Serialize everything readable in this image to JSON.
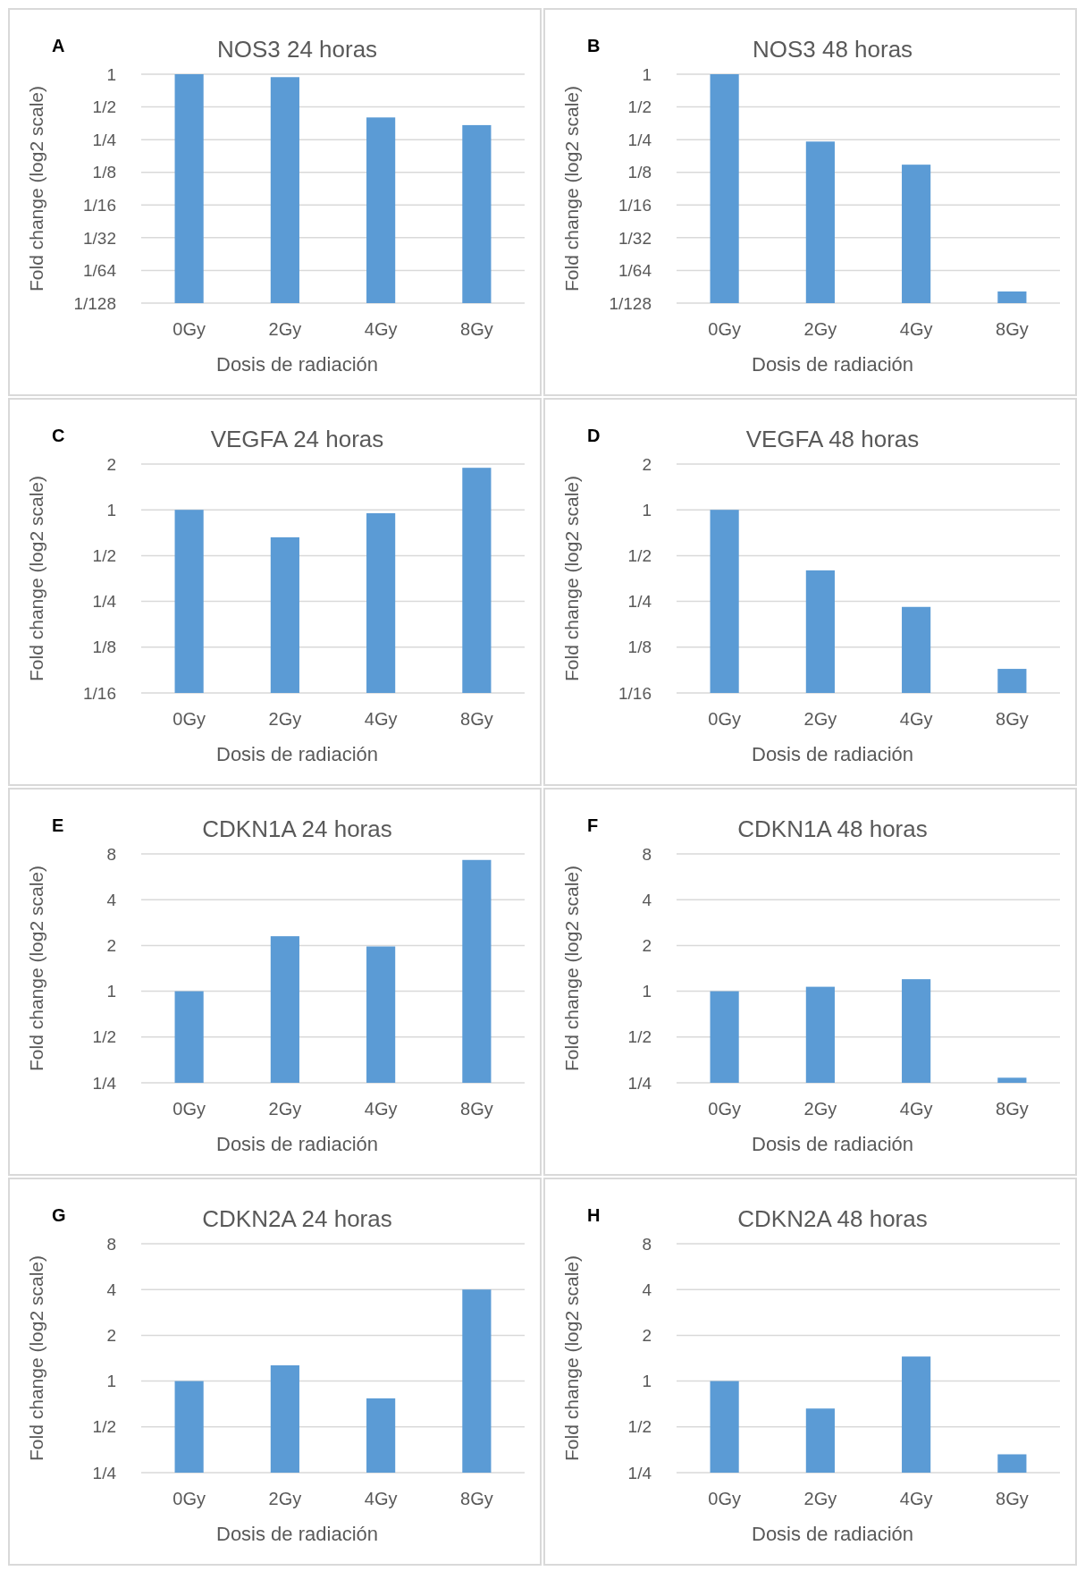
{
  "chart_data": [
    {
      "type": "bar",
      "title": "NOS3 24 horas",
      "xlabel": "Dosis de radiación",
      "ylabel": "Fold change (log2 scale)",
      "annotations": [
        "A"
      ],
      "categories": [
        "0Gy",
        "2Gy",
        "4Gy",
        "8Gy"
      ],
      "values": [
        1,
        0.94,
        0.4,
        0.34
      ],
      "color": "#5b9bd5",
      "log": "y",
      "grid": "y",
      "ylim": [
        0.0078125,
        1
      ],
      "yticks": [
        {
          "value": 0.0078125,
          "label": "1/128"
        },
        {
          "value": 0.015625,
          "label": "1/64"
        },
        {
          "value": 0.03125,
          "label": "1/32"
        },
        {
          "value": 0.0625,
          "label": "1/16"
        },
        {
          "value": 0.125,
          "label": "1/8"
        },
        {
          "value": 0.25,
          "label": "1/4"
        },
        {
          "value": 0.5,
          "label": "1/2"
        },
        1
      ]
    },
    {
      "type": "bar",
      "title": "NOS3 48 horas",
      "xlabel": "Dosis de radiación",
      "ylabel": "Fold change (log2 scale)",
      "annotations": [
        "B"
      ],
      "categories": [
        "0Gy",
        "2Gy",
        "4Gy",
        "8Gy"
      ],
      "values": [
        1,
        0.24,
        0.147,
        0.01
      ],
      "color": "#5b9bd5",
      "log": "y",
      "grid": "y",
      "ylim": [
        0.0078125,
        1
      ],
      "yticks": [
        {
          "value": 0.0078125,
          "label": "1/128"
        },
        {
          "value": 0.015625,
          "label": "1/64"
        },
        {
          "value": 0.03125,
          "label": "1/32"
        },
        {
          "value": 0.0625,
          "label": "1/16"
        },
        {
          "value": 0.125,
          "label": "1/8"
        },
        {
          "value": 0.25,
          "label": "1/4"
        },
        {
          "value": 0.5,
          "label": "1/2"
        },
        1
      ]
    },
    {
      "type": "bar",
      "title": "VEGFA 24 horas",
      "xlabel": "Dosis de radiación",
      "ylabel": "Fold change (log2 scale)",
      "annotations": [
        "C"
      ],
      "categories": [
        "0Gy",
        "2Gy",
        "4Gy",
        "8Gy"
      ],
      "values": [
        1,
        0.66,
        0.95,
        1.89
      ],
      "color": "#5b9bd5",
      "log": "y",
      "grid": "y",
      "ylim": [
        0.0625,
        2
      ],
      "yticks": [
        {
          "value": 0.0625,
          "label": "1/16"
        },
        {
          "value": 0.125,
          "label": "1/8"
        },
        {
          "value": 0.25,
          "label": "1/4"
        },
        {
          "value": 0.5,
          "label": "1/2"
        },
        1,
        2
      ]
    },
    {
      "type": "bar",
      "title": "VEGFA 48 horas",
      "xlabel": "Dosis de radiación",
      "ylabel": "Fold change (log2 scale)",
      "annotations": [
        "D"
      ],
      "categories": [
        "0Gy",
        "2Gy",
        "4Gy",
        "8Gy"
      ],
      "values": [
        1,
        0.4,
        0.23,
        0.09
      ],
      "color": "#5b9bd5",
      "log": "y",
      "grid": "y",
      "ylim": [
        0.0625,
        2
      ],
      "yticks": [
        {
          "value": 0.0625,
          "label": "1/16"
        },
        {
          "value": 0.125,
          "label": "1/8"
        },
        {
          "value": 0.25,
          "label": "1/4"
        },
        {
          "value": 0.5,
          "label": "1/2"
        },
        1,
        2
      ]
    },
    {
      "type": "bar",
      "title": "CDKN1A 24 horas",
      "xlabel": "Dosis de radiación",
      "ylabel": "Fold change (log2 scale)",
      "annotations": [
        "E"
      ],
      "categories": [
        "0Gy",
        "2Gy",
        "4Gy",
        "8Gy"
      ],
      "values": [
        1,
        2.3,
        1.97,
        7.3
      ],
      "color": "#5b9bd5",
      "log": "y",
      "grid": "y",
      "ylim": [
        0.25,
        8
      ],
      "yticks": [
        {
          "value": 0.25,
          "label": "1/4"
        },
        {
          "value": 0.5,
          "label": "1/2"
        },
        1,
        2,
        4,
        8
      ]
    },
    {
      "type": "bar",
      "title": "CDKN1A 48 horas",
      "xlabel": "Dosis de radiación",
      "ylabel": "Fold change (log2 scale)",
      "annotations": [
        "F"
      ],
      "categories": [
        "0Gy",
        "2Gy",
        "4Gy",
        "8Gy"
      ],
      "values": [
        1,
        1.07,
        1.2,
        0.27
      ],
      "color": "#5b9bd5",
      "log": "y",
      "grid": "y",
      "ylim": [
        0.25,
        8
      ],
      "yticks": [
        {
          "value": 0.25,
          "label": "1/4"
        },
        {
          "value": 0.5,
          "label": "1/2"
        },
        1,
        2,
        4,
        8
      ]
    },
    {
      "type": "bar",
      "title": "CDKN2A 24 horas",
      "xlabel": "Dosis de radiación",
      "ylabel": "Fold change (log2 scale)",
      "annotations": [
        "G"
      ],
      "categories": [
        "0Gy",
        "2Gy",
        "4Gy",
        "8Gy"
      ],
      "values": [
        1,
        1.27,
        0.77,
        4
      ],
      "color": "#5b9bd5",
      "log": "y",
      "grid": "y",
      "ylim": [
        0.25,
        8
      ],
      "yticks": [
        {
          "value": 0.25,
          "label": "1/4"
        },
        {
          "value": 0.5,
          "label": "1/2"
        },
        1,
        2,
        4,
        8
      ]
    },
    {
      "type": "bar",
      "title": "CDKN2A 48 horas",
      "xlabel": "Dosis de radiación",
      "ylabel": "Fold change (log2 scale)",
      "annotations": [
        "H"
      ],
      "categories": [
        "0Gy",
        "2Gy",
        "4Gy",
        "8Gy"
      ],
      "values": [
        1,
        0.66,
        1.45,
        0.33
      ],
      "color": "#5b9bd5",
      "log": "y",
      "grid": "y",
      "ylim": [
        0.25,
        8
      ],
      "yticks": [
        {
          "value": 0.25,
          "label": "1/4"
        },
        {
          "value": 0.5,
          "label": "1/2"
        },
        1,
        2,
        4,
        8
      ]
    }
  ]
}
